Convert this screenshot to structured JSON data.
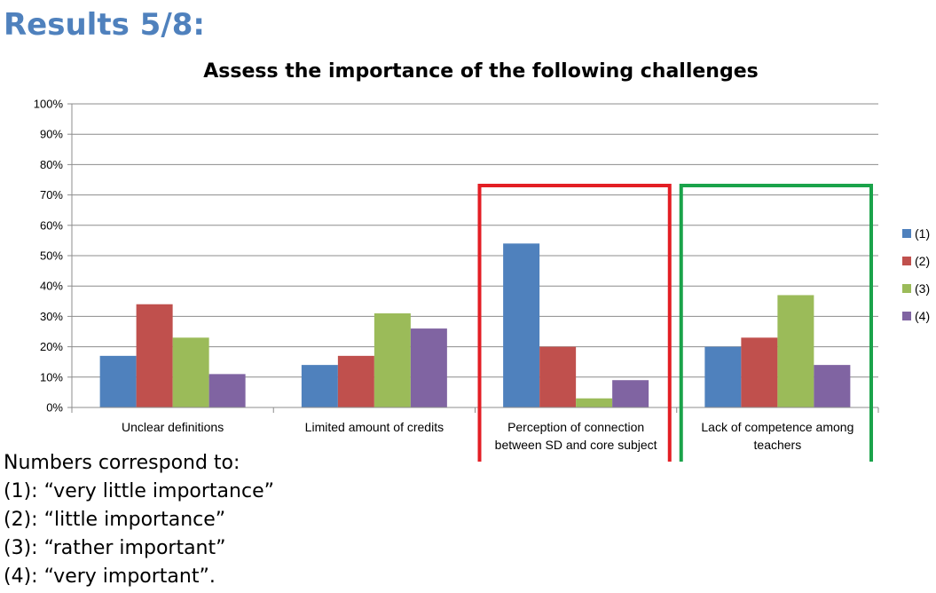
{
  "slide": {
    "title": "Results 5/8:"
  },
  "chart_data": {
    "type": "bar",
    "title": "Assess the importance of the following challenges",
    "xlabel": "",
    "ylabel": "",
    "ylim": [
      0,
      100
    ],
    "yticks": [
      "0%",
      "10%",
      "20%",
      "30%",
      "40%",
      "50%",
      "60%",
      "70%",
      "80%",
      "90%",
      "100%"
    ],
    "categories": [
      [
        "Unclear definitions"
      ],
      [
        "Limited amount of credits"
      ],
      [
        "Perception of connection",
        "between SD and core subject"
      ],
      [
        "Lack of competence among",
        "teachers"
      ]
    ],
    "series": [
      {
        "name": "(1)",
        "color": "#4f81bd",
        "values": [
          17,
          14,
          54,
          20
        ]
      },
      {
        "name": "(2)",
        "color": "#c0504d",
        "values": [
          34,
          17,
          20,
          23
        ]
      },
      {
        "name": "(3)",
        "color": "#9bbb59",
        "values": [
          23,
          31,
          3,
          37
        ]
      },
      {
        "name": "(4)",
        "color": "#8064a2",
        "values": [
          11,
          26,
          9,
          14
        ]
      }
    ],
    "grid": true,
    "legend": "right",
    "highlights": [
      {
        "category_index": 2,
        "color": "#e31e24"
      },
      {
        "category_index": 3,
        "color": "#1aa34a"
      }
    ]
  },
  "notes": {
    "lines": [
      "Numbers correspond to:",
      "(1): “very little importance”",
      "(2): “little importance”",
      "(3): “rather important”",
      "(4): “very important”."
    ]
  }
}
